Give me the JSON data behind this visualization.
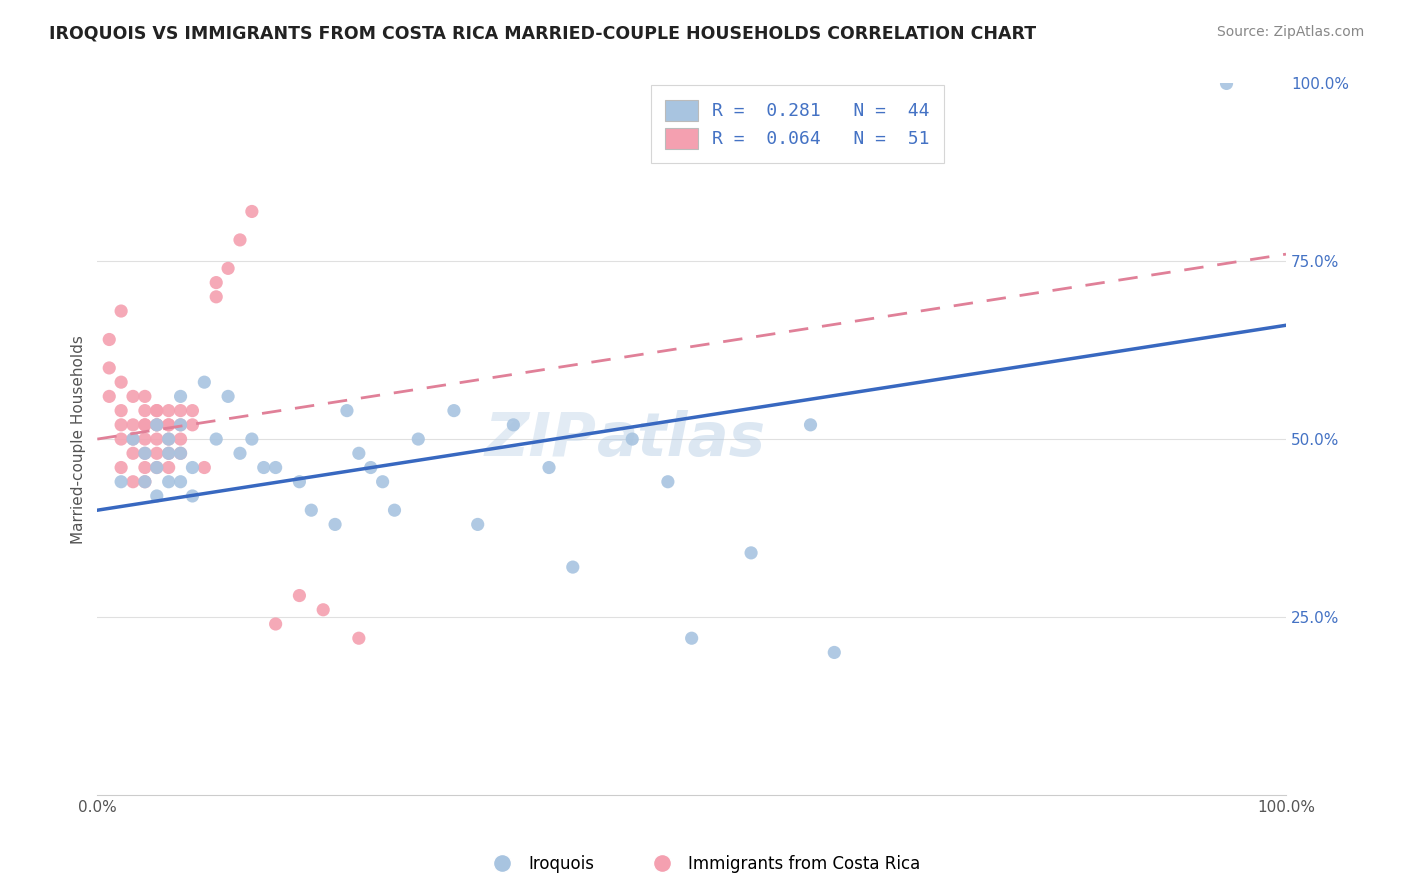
{
  "title": "IROQUOIS VS IMMIGRANTS FROM COSTA RICA MARRIED-COUPLE HOUSEHOLDS CORRELATION CHART",
  "source": "Source: ZipAtlas.com",
  "ylabel": "Married-couple Households",
  "legend_blue_label": "Iroquois",
  "legend_pink_label": "Immigrants from Costa Rica",
  "R_blue": 0.281,
  "N_blue": 44,
  "R_pink": 0.064,
  "N_pink": 51,
  "blue_color": "#a8c4e0",
  "pink_color": "#f4a0b0",
  "blue_line_color": "#3868c0",
  "pink_line_color": "#e08098",
  "watermark": "ZIPatlas",
  "blue_scatter_x": [
    0.02,
    0.03,
    0.04,
    0.04,
    0.05,
    0.05,
    0.05,
    0.06,
    0.06,
    0.06,
    0.07,
    0.07,
    0.07,
    0.07,
    0.08,
    0.08,
    0.09,
    0.1,
    0.11,
    0.12,
    0.13,
    0.14,
    0.15,
    0.17,
    0.18,
    0.2,
    0.21,
    0.22,
    0.23,
    0.24,
    0.25,
    0.27,
    0.3,
    0.32,
    0.35,
    0.38,
    0.4,
    0.45,
    0.48,
    0.5,
    0.55,
    0.6,
    0.62,
    0.95
  ],
  "blue_scatter_y": [
    0.44,
    0.5,
    0.48,
    0.44,
    0.52,
    0.46,
    0.42,
    0.5,
    0.48,
    0.44,
    0.56,
    0.52,
    0.48,
    0.44,
    0.46,
    0.42,
    0.58,
    0.5,
    0.56,
    0.48,
    0.5,
    0.46,
    0.46,
    0.44,
    0.4,
    0.38,
    0.54,
    0.48,
    0.46,
    0.44,
    0.4,
    0.5,
    0.54,
    0.38,
    0.52,
    0.46,
    0.32,
    0.5,
    0.44,
    0.22,
    0.34,
    0.52,
    0.2,
    1.0
  ],
  "pink_scatter_x": [
    0.01,
    0.01,
    0.01,
    0.02,
    0.02,
    0.02,
    0.02,
    0.02,
    0.02,
    0.03,
    0.03,
    0.03,
    0.03,
    0.03,
    0.04,
    0.04,
    0.04,
    0.04,
    0.04,
    0.04,
    0.04,
    0.04,
    0.05,
    0.05,
    0.05,
    0.05,
    0.05,
    0.05,
    0.05,
    0.06,
    0.06,
    0.06,
    0.06,
    0.06,
    0.06,
    0.07,
    0.07,
    0.07,
    0.07,
    0.08,
    0.08,
    0.09,
    0.1,
    0.1,
    0.11,
    0.12,
    0.13,
    0.15,
    0.17,
    0.19,
    0.22
  ],
  "pink_scatter_y": [
    0.56,
    0.6,
    0.64,
    0.54,
    0.58,
    0.52,
    0.5,
    0.46,
    0.68,
    0.52,
    0.56,
    0.5,
    0.48,
    0.44,
    0.52,
    0.56,
    0.54,
    0.5,
    0.48,
    0.46,
    0.44,
    0.52,
    0.52,
    0.54,
    0.5,
    0.48,
    0.52,
    0.46,
    0.54,
    0.52,
    0.5,
    0.54,
    0.52,
    0.48,
    0.46,
    0.54,
    0.52,
    0.5,
    0.48,
    0.54,
    0.52,
    0.46,
    0.7,
    0.72,
    0.74,
    0.78,
    0.82,
    0.24,
    0.28,
    0.26,
    0.22
  ],
  "blue_line_x0": 0.0,
  "blue_line_x1": 1.0,
  "blue_line_y0": 0.4,
  "blue_line_y1": 0.66,
  "pink_line_x0": 0.0,
  "pink_line_x1": 1.0,
  "pink_line_y0": 0.5,
  "pink_line_y1": 0.76,
  "xlim": [
    0.0,
    1.0
  ],
  "ylim": [
    0.0,
    1.0
  ],
  "grid_color": "#e0e0e0",
  "background_color": "#ffffff",
  "title_color": "#222222",
  "source_color": "#888888",
  "axis_color": "#4472c4",
  "axis_label_color": "#555555"
}
